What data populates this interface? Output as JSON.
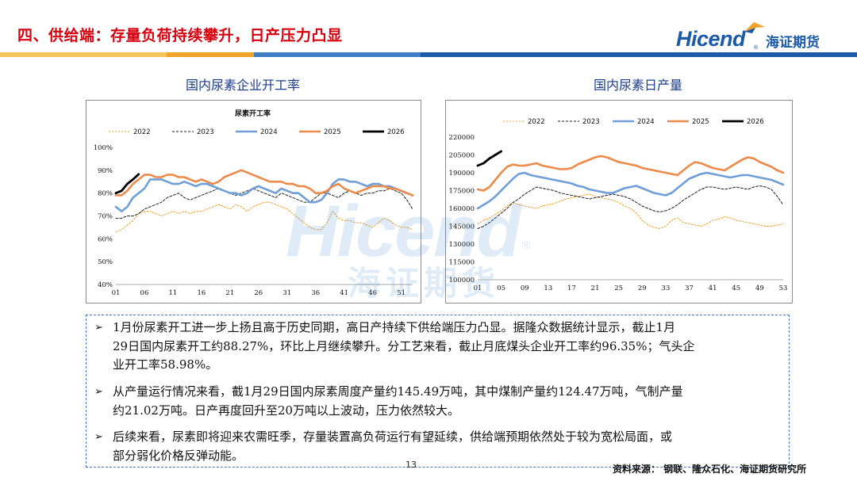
{
  "header": {
    "title": "四、供给端：存量负荷持续攀升，日产压力凸显"
  },
  "logo": {
    "word": "Hicend",
    "reg": "®",
    "cn": "海证期货"
  },
  "colors": {
    "title_red": "#d7000f",
    "brand_blue": "#1a5aa8",
    "accent_orange": "#f0a22a",
    "s2022": "#f0a22a",
    "s2023": "#222222",
    "s2024": "#6f9ed8",
    "s2025": "#ed8a4a",
    "s2026": "#000000"
  },
  "watermark": {
    "word": "Hicend",
    "cn": "海证期货",
    "reg": "®"
  },
  "left_chart": {
    "heading": "国内尿素企业开工率",
    "chart_data": {
      "type": "line",
      "title": "尿素开工率",
      "yticks": [
        "100%",
        "90%",
        "80%",
        "70%",
        "60%",
        "50%",
        "40%"
      ],
      "ylim": [
        40,
        100
      ],
      "xlim": [
        1,
        53
      ],
      "xticks": [
        "01",
        "06",
        "11",
        "16",
        "21",
        "26",
        "31",
        "36",
        "41",
        "46",
        "51"
      ],
      "xtick_values": [
        1,
        6,
        11,
        16,
        21,
        26,
        31,
        36,
        41,
        46,
        51
      ],
      "legend_position": "top",
      "series": [
        {
          "name": "2022",
          "style": "dotted",
          "values": [
            63,
            64,
            66,
            68,
            71,
            72,
            72,
            71,
            70,
            71,
            72,
            71,
            72,
            71,
            72,
            72,
            73,
            74,
            75,
            74,
            73,
            75,
            74,
            72,
            74,
            75,
            76,
            76,
            75,
            74,
            73,
            71,
            69,
            67,
            65,
            64,
            64,
            67,
            72,
            69,
            68,
            68,
            67,
            67,
            66,
            65,
            67,
            69,
            68,
            66,
            65,
            65,
            64
          ]
        },
        {
          "name": "2023",
          "style": "dashed",
          "values": [
            69,
            69,
            70,
            70,
            71,
            73,
            74,
            75,
            76,
            78,
            79,
            80,
            78,
            77,
            78,
            79,
            80,
            81,
            82,
            81,
            80,
            79,
            80,
            81,
            82,
            81,
            80,
            79,
            78,
            80,
            79,
            78,
            77,
            76,
            76,
            78,
            80,
            80,
            79,
            78,
            80,
            81,
            80,
            79,
            80,
            80,
            81,
            81,
            82,
            81,
            80,
            77,
            73
          ]
        },
        {
          "name": "2024",
          "style": "solid",
          "values": [
            74,
            72,
            74,
            78,
            80,
            82,
            86,
            86,
            86,
            85,
            84,
            84,
            85,
            84,
            83,
            84,
            84,
            83,
            82,
            81,
            80,
            80,
            79,
            80,
            82,
            83,
            82,
            81,
            80,
            82,
            81,
            80,
            80,
            78,
            76,
            76,
            77,
            80,
            84,
            86,
            86,
            85,
            85,
            84,
            83,
            84,
            84,
            83,
            83,
            82,
            81,
            80,
            79
          ]
        },
        {
          "name": "2025",
          "style": "solid",
          "values": [
            79,
            79,
            81,
            84,
            86,
            88,
            88,
            87,
            87,
            88,
            88,
            87,
            87,
            86,
            85,
            86,
            85,
            84,
            85,
            87,
            88,
            89,
            90,
            89,
            88,
            87,
            86,
            85,
            85,
            85,
            84,
            84,
            83,
            83,
            82,
            80,
            80,
            81,
            83,
            84,
            82,
            81,
            80,
            81,
            82,
            83,
            83,
            83,
            82,
            82,
            81,
            80,
            79
          ]
        },
        {
          "name": "2026",
          "style": "solid",
          "values": [
            80,
            81,
            84,
            86,
            88.27
          ]
        }
      ]
    }
  },
  "right_chart": {
    "heading": "国内尿素日产量",
    "chart_data": {
      "type": "line",
      "title": "",
      "yticks": [
        "220000",
        "205000",
        "190000",
        "175000",
        "160000",
        "145000",
        "130000",
        "115000",
        "100000"
      ],
      "ylim": [
        100000,
        220000
      ],
      "xlim": [
        1,
        53
      ],
      "xticks": [
        "01",
        "05",
        "09",
        "13",
        "17",
        "21",
        "25",
        "29",
        "33",
        "37",
        "41",
        "45",
        "49",
        "53"
      ],
      "xtick_values": [
        1,
        5,
        9,
        13,
        17,
        21,
        25,
        29,
        33,
        37,
        41,
        45,
        49,
        53
      ],
      "legend_position": "top",
      "series": [
        {
          "name": "2022",
          "style": "dotted",
          "values": [
            147000,
            150000,
            152000,
            155000,
            158000,
            162000,
            165000,
            163000,
            162000,
            161000,
            160000,
            162000,
            163000,
            164000,
            166000,
            168000,
            169000,
            170000,
            171000,
            172000,
            170000,
            169000,
            168000,
            167000,
            165000,
            162000,
            160000,
            156000,
            150000,
            146000,
            144000,
            143000,
            145000,
            150000,
            152000,
            148000,
            147000,
            146000,
            145000,
            147000,
            150000,
            151000,
            153000,
            152000,
            150000,
            149000,
            148000,
            147000,
            146000,
            145000,
            145000,
            146000,
            147000
          ]
        },
        {
          "name": "2023",
          "style": "dashed",
          "values": [
            143000,
            145000,
            148000,
            152000,
            156000,
            160000,
            165000,
            168000,
            172000,
            175000,
            178000,
            177000,
            176000,
            175000,
            173000,
            172000,
            171000,
            170000,
            169000,
            168000,
            169000,
            170000,
            171000,
            172000,
            171000,
            170000,
            168000,
            165000,
            162000,
            160000,
            158000,
            157000,
            158000,
            160000,
            163000,
            167000,
            170000,
            173000,
            176000,
            178000,
            178000,
            177000,
            176000,
            177000,
            178000,
            177000,
            176000,
            178000,
            179000,
            178000,
            176000,
            170000,
            163000
          ]
        },
        {
          "name": "2024",
          "style": "solid",
          "values": [
            160000,
            163000,
            166000,
            170000,
            175000,
            180000,
            185000,
            189000,
            190000,
            188000,
            187000,
            186000,
            185000,
            184000,
            183000,
            182000,
            181000,
            179000,
            178000,
            176000,
            175000,
            174000,
            173000,
            173000,
            175000,
            177000,
            178000,
            179000,
            177000,
            175000,
            173000,
            172000,
            171000,
            173000,
            177000,
            181000,
            185000,
            187000,
            189000,
            190000,
            189000,
            188000,
            187000,
            186000,
            187000,
            188000,
            188000,
            187000,
            186000,
            185000,
            184000,
            182000,
            180000
          ]
        },
        {
          "name": "2025",
          "style": "solid",
          "values": [
            176000,
            175000,
            178000,
            184000,
            190000,
            195000,
            197000,
            196000,
            196000,
            197000,
            198000,
            196000,
            195000,
            194000,
            193000,
            193000,
            194000,
            197000,
            199000,
            201000,
            203000,
            204000,
            203000,
            201000,
            199000,
            198000,
            197000,
            196000,
            194000,
            193000,
            192000,
            191000,
            190000,
            189000,
            188000,
            192000,
            196000,
            199000,
            198000,
            196000,
            194000,
            193000,
            192000,
            195000,
            198000,
            201000,
            203000,
            202000,
            199000,
            197000,
            195000,
            192000,
            190000
          ]
        },
        {
          "name": "2026",
          "style": "solid",
          "values": [
            196000,
            198000,
            202000,
            205000,
            208000
          ]
        }
      ]
    }
  },
  "textbox": {
    "bullet_symbol": "➢",
    "bullets": [
      {
        "lines": [
          "1月份尿素开工进一步上扬且高于历史同期，高日产持续下供给端压力凸显。据隆众数据统计显示，截止1月",
          "29日国内尿素开工约88.27%，环比上月继续攀升。分工艺来看，截止月底煤头企业开工率约96.35%；气头企",
          "业开工率58.98%。"
        ]
      },
      {
        "lines": [
          "从产量运行情况来看，截1月29日国内尿素周度产量约145.49万吨，其中煤制产量约124.47万吨，气制产量",
          "约21.02万吨。日产再度回升至20万吨以上波动，压力依然较大。"
        ]
      },
      {
        "lines": [
          "后续来看，尿素即将迎来农需旺季，存量装置高负荷运行有望延续，供给端预期依然处于较为宽松局面，或",
          "部分弱化价格反弹动能。"
        ]
      }
    ]
  },
  "footer": {
    "page_number": "13",
    "source": "资料来源：   钢联、隆众石化、海证期货研究所"
  }
}
